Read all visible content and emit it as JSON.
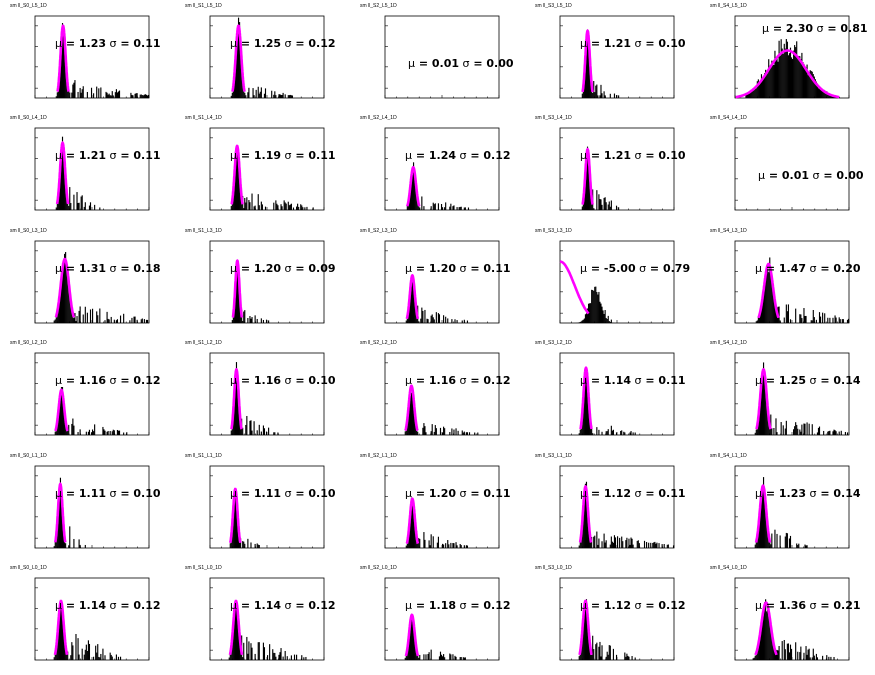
{
  "colors": {
    "fit": "#ff00ff",
    "histogram": "#000000",
    "frame": "#000000",
    "background": "#ffffff"
  },
  "chart_data": [
    {
      "type": "histogram",
      "title": "sm ll_S0_L5_1D",
      "annotation": {
        "mu": "1.23",
        "sigma": "0.11"
      },
      "fit": {
        "mean": 1.23,
        "sigma": 0.11,
        "peak": 0.88
      },
      "hist": {
        "mode": "peak",
        "tail": 0.75,
        "tail_amp": 0.22
      }
    },
    {
      "type": "histogram",
      "title": "sm ll_S1_L5_1D",
      "annotation": {
        "mu": "1.25",
        "sigma": "0.12"
      },
      "fit": {
        "mean": 1.25,
        "sigma": 0.12,
        "peak": 0.88
      },
      "hist": {
        "mode": "peak",
        "tail": 0.45,
        "tail_amp": 0.18
      }
    },
    {
      "type": "histogram",
      "title": "sm ll_S2_L5_1D",
      "annotation": {
        "mu": "0.01",
        "sigma": "0.00"
      },
      "fit": null,
      "hist": {
        "mode": "empty"
      }
    },
    {
      "type": "histogram",
      "title": "sm ll_S3_L5_1D",
      "annotation": {
        "mu": "1.21",
        "sigma": "0.10"
      },
      "fit": {
        "mean": 1.21,
        "sigma": 0.1,
        "peak": 0.82
      },
      "hist": {
        "mode": "peak",
        "tail": 0.25,
        "tail_amp": 0.2
      }
    },
    {
      "type": "histogram",
      "title": "sm ll_S4_L5_1D",
      "annotation": {
        "mu": "2.30",
        "sigma": "0.81"
      },
      "fit": {
        "mean": 2.3,
        "sigma": 0.81,
        "peak": 0.58
      },
      "hist": {
        "mode": "broad",
        "tail": 0.0,
        "tail_amp": 0.0
      }
    },
    {
      "type": "histogram",
      "title": "sm ll_S0_L4_1D",
      "annotation": {
        "mu": "1.21",
        "sigma": "0.11"
      },
      "fit": {
        "mean": 1.21,
        "sigma": 0.11,
        "peak": 0.82
      },
      "hist": {
        "mode": "peak",
        "tail": 0.3,
        "tail_amp": 0.3
      }
    },
    {
      "type": "histogram",
      "title": "sm ll_S1_L4_1D",
      "annotation": {
        "mu": "1.19",
        "sigma": "0.11"
      },
      "fit": {
        "mean": 1.19,
        "sigma": 0.11,
        "peak": 0.78
      },
      "hist": {
        "mode": "peak",
        "tail": 0.65,
        "tail_amp": 0.22
      }
    },
    {
      "type": "histogram",
      "title": "sm ll_S2_L4_1D",
      "annotation": {
        "mu": "1.24",
        "sigma": "0.12"
      },
      "fit": {
        "mean": 1.24,
        "sigma": 0.12,
        "peak": 0.52
      },
      "hist": {
        "mode": "peak",
        "tail": 0.45,
        "tail_amp": 0.15
      }
    },
    {
      "type": "histogram",
      "title": "sm ll_S3_L4_1D",
      "annotation": {
        "mu": "1.21",
        "sigma": "0.10"
      },
      "fit": {
        "mean": 1.21,
        "sigma": 0.1,
        "peak": 0.74
      },
      "hist": {
        "mode": "peak",
        "tail": 0.25,
        "tail_amp": 0.3
      }
    },
    {
      "type": "histogram",
      "title": "sm ll_S4_L4_1D",
      "annotation": {
        "mu": "0.01",
        "sigma": "0.00"
      },
      "fit": null,
      "hist": {
        "mode": "empty"
      }
    },
    {
      "type": "histogram",
      "title": "sm ll_S0_L3_1D",
      "annotation": {
        "mu": "1.31",
        "sigma": "0.18"
      },
      "fit": {
        "mean": 1.31,
        "sigma": 0.18,
        "peak": 0.78
      },
      "hist": {
        "mode": "peak",
        "tail": 0.7,
        "tail_amp": 0.25
      }
    },
    {
      "type": "histogram",
      "title": "sm ll_S1_L3_1D",
      "annotation": {
        "mu": "1.20",
        "sigma": "0.09"
      },
      "fit": {
        "mean": 1.2,
        "sigma": 0.09,
        "peak": 0.76
      },
      "hist": {
        "mode": "peak",
        "tail": 0.25,
        "tail_amp": 0.15
      }
    },
    {
      "type": "histogram",
      "title": "sm ll_S2_L3_1D",
      "annotation": {
        "mu": "1.20",
        "sigma": "0.11"
      },
      "fit": {
        "mean": 1.2,
        "sigma": 0.11,
        "peak": 0.58
      },
      "hist": {
        "mode": "peak",
        "tail": 0.45,
        "tail_amp": 0.2
      }
    },
    {
      "type": "histogram",
      "title": "sm ll_S3_L3_1D",
      "annotation": {
        "mu": "-5.00",
        "sigma": "0.79"
      },
      "fit": {
        "mean": -5.0,
        "sigma": 0.79,
        "peak": 0.75
      },
      "hist": {
        "mode": "offset",
        "tail": 0.4,
        "tail_amp": 0.2
      }
    },
    {
      "type": "histogram",
      "title": "sm ll_S4_L3_1D",
      "annotation": {
        "mu": "1.47",
        "sigma": "0.20"
      },
      "fit": {
        "mean": 1.47,
        "sigma": 0.2,
        "peak": 0.72
      },
      "hist": {
        "mode": "peak",
        "tail": 0.7,
        "tail_amp": 0.25
      }
    },
    {
      "type": "histogram",
      "title": "sm ll_S0_L2_1D",
      "annotation": {
        "mu": "1.16",
        "sigma": "0.12"
      },
      "fit": {
        "mean": 1.16,
        "sigma": 0.12,
        "peak": 0.55
      },
      "hist": {
        "mode": "peak",
        "tail": 0.55,
        "tail_amp": 0.2
      }
    },
    {
      "type": "histogram",
      "title": "sm ll_S1_L2_1D",
      "annotation": {
        "mu": "1.16",
        "sigma": "0.10"
      },
      "fit": {
        "mean": 1.16,
        "sigma": 0.1,
        "peak": 0.8
      },
      "hist": {
        "mode": "peak",
        "tail": 0.35,
        "tail_amp": 0.25
      }
    },
    {
      "type": "histogram",
      "title": "sm ll_S2_L2_1D",
      "annotation": {
        "mu": "1.16",
        "sigma": "0.12"
      },
      "fit": {
        "mean": 1.16,
        "sigma": 0.12,
        "peak": 0.6
      },
      "hist": {
        "mode": "peak",
        "tail": 0.55,
        "tail_amp": 0.15
      }
    },
    {
      "type": "histogram",
      "title": "sm ll_S3_L2_1D",
      "annotation": {
        "mu": "1.14",
        "sigma": "0.11"
      },
      "fit": {
        "mean": 1.14,
        "sigma": 0.11,
        "peak": 0.82
      },
      "hist": {
        "mode": "peak",
        "tail": 0.4,
        "tail_amp": 0.2
      }
    },
    {
      "type": "histogram",
      "title": "sm ll_S4_L2_1D",
      "annotation": {
        "mu": "1.25",
        "sigma": "0.14"
      },
      "fit": {
        "mean": 1.25,
        "sigma": 0.14,
        "peak": 0.8
      },
      "hist": {
        "mode": "peak",
        "tail": 0.7,
        "tail_amp": 0.25
      }
    },
    {
      "type": "histogram",
      "title": "sm ll_S0_L1_1D",
      "annotation": {
        "mu": "1.11",
        "sigma": "0.10"
      },
      "fit": {
        "mean": 1.11,
        "sigma": 0.1,
        "peak": 0.78
      },
      "hist": {
        "mode": "peak",
        "tail": 0.2,
        "tail_amp": 0.35
      }
    },
    {
      "type": "histogram",
      "title": "sm ll_S1_L1_1D",
      "annotation": {
        "mu": "1.11",
        "sigma": "0.10"
      },
      "fit": {
        "mean": 1.11,
        "sigma": 0.1,
        "peak": 0.72
      },
      "hist": {
        "mode": "peak",
        "tail": 0.2,
        "tail_amp": 0.2
      }
    },
    {
      "type": "histogram",
      "title": "sm ll_S2_L1_1D",
      "annotation": {
        "mu": "1.20",
        "sigma": "0.11"
      },
      "fit": {
        "mean": 1.2,
        "sigma": 0.11,
        "peak": 0.6
      },
      "hist": {
        "mode": "peak",
        "tail": 0.45,
        "tail_amp": 0.2
      }
    },
    {
      "type": "histogram",
      "title": "sm ll_S3_L1_1D",
      "annotation": {
        "mu": "1.12",
        "sigma": "0.11"
      },
      "fit": {
        "mean": 1.12,
        "sigma": 0.11,
        "peak": 0.75
      },
      "hist": {
        "mode": "peak",
        "tail": 0.75,
        "tail_amp": 0.2
      }
    },
    {
      "type": "histogram",
      "title": "sm ll_S4_L1_1D",
      "annotation": {
        "mu": "1.23",
        "sigma": "0.14"
      },
      "fit": {
        "mean": 1.23,
        "sigma": 0.14,
        "peak": 0.76
      },
      "hist": {
        "mode": "peak",
        "tail": 0.35,
        "tail_amp": 0.3
      }
    },
    {
      "type": "histogram",
      "title": "sm ll_S0_L0_1D",
      "annotation": {
        "mu": "1.14",
        "sigma": "0.12"
      },
      "fit": {
        "mean": 1.14,
        "sigma": 0.12,
        "peak": 0.72
      },
      "hist": {
        "mode": "peak",
        "tail": 0.5,
        "tail_amp": 0.4
      }
    },
    {
      "type": "histogram",
      "title": "sm ll_S1_L0_1D",
      "annotation": {
        "mu": "1.14",
        "sigma": "0.12"
      },
      "fit": {
        "mean": 1.14,
        "sigma": 0.12,
        "peak": 0.72
      },
      "hist": {
        "mode": "peak",
        "tail": 0.6,
        "tail_amp": 0.3
      }
    },
    {
      "type": "histogram",
      "title": "sm ll_S2_L0_1D",
      "annotation": {
        "mu": "1.18",
        "sigma": "0.12"
      },
      "fit": {
        "mean": 1.18,
        "sigma": 0.12,
        "peak": 0.55
      },
      "hist": {
        "mode": "peak",
        "tail": 0.45,
        "tail_amp": 0.15
      }
    },
    {
      "type": "histogram",
      "title": "sm ll_S3_L0_1D",
      "annotation": {
        "mu": "1.12",
        "sigma": "0.12"
      },
      "fit": {
        "mean": 1.12,
        "sigma": 0.12,
        "peak": 0.72
      },
      "hist": {
        "mode": "peak",
        "tail": 0.4,
        "tail_amp": 0.3
      }
    },
    {
      "type": "histogram",
      "title": "sm ll_S4_L0_1D",
      "annotation": {
        "mu": "1.36",
        "sigma": "0.21"
      },
      "fit": {
        "mean": 1.36,
        "sigma": 0.21,
        "peak": 0.7
      },
      "hist": {
        "mode": "peak",
        "tail": 0.55,
        "tail_amp": 0.3
      }
    }
  ]
}
